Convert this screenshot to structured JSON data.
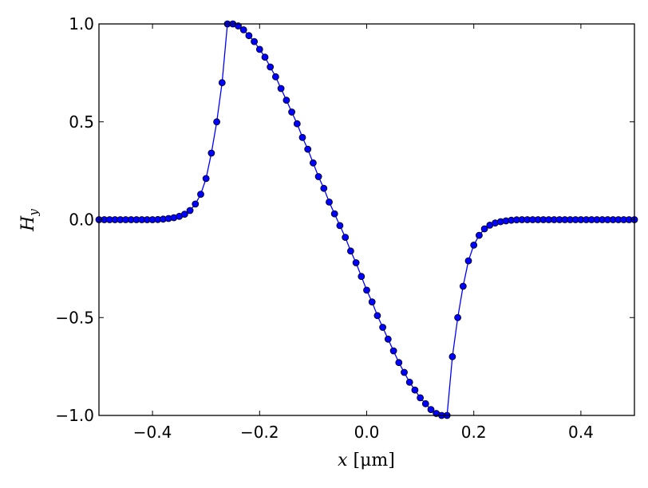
{
  "chart_data": {
    "type": "line",
    "xlabel": {
      "var": "x",
      "unit": "[μm]"
    },
    "ylabel": {
      "var": "H",
      "sub": "y"
    },
    "xlim": [
      -0.5,
      0.5
    ],
    "ylim": [
      -1.0,
      1.0
    ],
    "xticks": [
      -0.4,
      -0.2,
      0.0,
      0.2,
      0.4
    ],
    "xtick_labels": [
      "−0.4",
      "−0.2",
      "0.0",
      "0.2",
      "0.4"
    ],
    "yticks": [
      -1.0,
      -0.5,
      0.0,
      0.5,
      1.0
    ],
    "ytick_labels": [
      "−1.0",
      "−0.5",
      "0.0",
      "0.5",
      "1.0"
    ],
    "grid": false,
    "marker": "circle",
    "color": "#0000ff",
    "series": [
      {
        "x": [
          -0.5,
          -0.49,
          -0.48,
          -0.47,
          -0.46,
          -0.45,
          -0.44,
          -0.43,
          -0.42,
          -0.41,
          -0.4,
          -0.39,
          -0.38,
          -0.37,
          -0.36,
          -0.35,
          -0.34,
          -0.33,
          -0.32,
          -0.31,
          -0.3,
          -0.29,
          -0.28,
          -0.27,
          -0.26,
          -0.25,
          -0.24,
          -0.23,
          -0.22,
          -0.21,
          -0.2,
          -0.19,
          -0.18,
          -0.17,
          -0.16,
          -0.15,
          -0.14,
          -0.13,
          -0.12,
          -0.11,
          -0.1,
          -0.09,
          -0.08,
          -0.07,
          -0.06,
          -0.05,
          -0.04,
          -0.03,
          -0.02,
          -0.01,
          0.0,
          0.01,
          0.02,
          0.03,
          0.04,
          0.05,
          0.06,
          0.07,
          0.08,
          0.09,
          0.1,
          0.11,
          0.12,
          0.13,
          0.14,
          0.15,
          0.16,
          0.17,
          0.18,
          0.19,
          0.2,
          0.21,
          0.22,
          0.23,
          0.24,
          0.25,
          0.26,
          0.27,
          0.28,
          0.29,
          0.3,
          0.31,
          0.32,
          0.33,
          0.34,
          0.35,
          0.36,
          0.37,
          0.38,
          0.39,
          0.4,
          0.41,
          0.42,
          0.43,
          0.44,
          0.45,
          0.46,
          0.47,
          0.48,
          0.49,
          0.5
        ],
        "y": [
          0.0,
          0.0,
          0.0,
          0.0,
          0.0,
          0.0,
          0.0,
          0.0,
          0.0,
          0.0,
          0.0,
          0.001,
          0.003,
          0.006,
          0.01,
          0.017,
          0.028,
          0.047,
          0.08,
          0.13,
          0.21,
          0.34,
          0.5,
          0.7,
          1.0,
          1.0,
          0.99,
          0.97,
          0.94,
          0.91,
          0.87,
          0.83,
          0.78,
          0.73,
          0.67,
          0.61,
          0.55,
          0.49,
          0.42,
          0.36,
          0.29,
          0.22,
          0.16,
          0.09,
          0.03,
          -0.03,
          -0.09,
          -0.16,
          -0.22,
          -0.29,
          -0.36,
          -0.42,
          -0.49,
          -0.55,
          -0.61,
          -0.67,
          -0.73,
          -0.78,
          -0.83,
          -0.87,
          -0.91,
          -0.94,
          -0.97,
          -0.99,
          -1.0,
          -1.0,
          -0.7,
          -0.5,
          -0.34,
          -0.21,
          -0.13,
          -0.08,
          -0.047,
          -0.028,
          -0.017,
          -0.01,
          -0.006,
          -0.003,
          -0.001,
          0.0,
          0.0,
          0.0,
          0.0,
          0.0,
          0.0,
          0.0,
          0.0,
          0.0,
          0.0,
          0.0,
          0.0,
          0.0,
          0.0,
          0.0,
          0.0,
          0.0,
          0.0,
          0.0,
          0.0,
          0.0,
          0.0
        ]
      }
    ]
  }
}
